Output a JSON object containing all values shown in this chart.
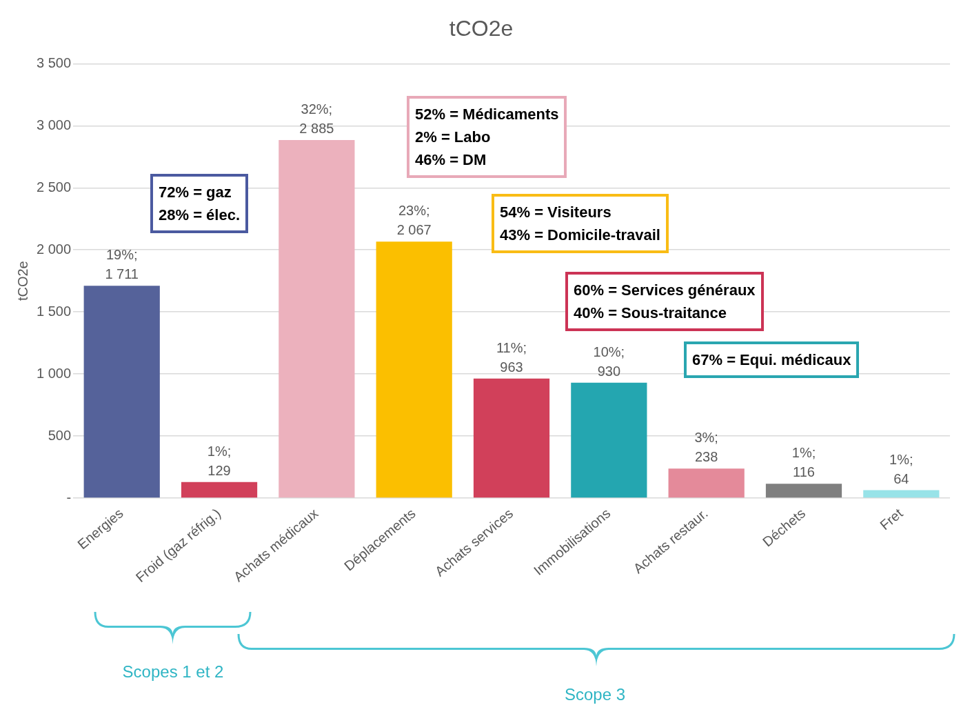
{
  "chart_data": {
    "type": "bar",
    "title": "tCO2e",
    "ylabel": "tCO2e",
    "categories": [
      "Energies",
      "Froid (gaz réfrig.)",
      "Achats médicaux",
      "Déplacements",
      "Achats services",
      "Immobilisations",
      "Achats restaur.",
      "Déchets",
      "Fret"
    ],
    "values": [
      1711,
      129,
      2885,
      2067,
      963,
      930,
      238,
      116,
      64
    ],
    "colors": [
      "#55629a",
      "#d1405a",
      "#ecb1bd",
      "#fbbf00",
      "#d1405a",
      "#24a6b0",
      "#e48a9a",
      "#7f7f7f",
      "#98e3e8"
    ],
    "value_labels": [
      "19%;\n1 711",
      "1%;\n129",
      "32%;\n2 885",
      "23%;\n2 067",
      "11%;\n963",
      "10%;\n930",
      "3%;\n238",
      "1%;\n116",
      "1%;\n64"
    ],
    "ylim": [
      0,
      3500
    ],
    "yticks": [
      {
        "value": 0,
        "label": "-"
      },
      500,
      {
        "value": 1000,
        "label": "1 000"
      },
      {
        "value": 1500,
        "label": "1 500"
      },
      {
        "value": 2000,
        "label": "2 000"
      },
      {
        "value": 2500,
        "label": "2 500"
      },
      {
        "value": 3000,
        "label": "3 000"
      },
      {
        "value": 3500,
        "label": "3 500"
      }
    ],
    "grid": "y",
    "legend": false,
    "annotations": [
      "72% = gaz\n28% = élec.",
      "52% = Médicaments\n2% = Labo\n46% = DM",
      "54% = Visiteurs\n43% = Domicile-travail",
      "60% = Services généraux\n40% = Sous-traitance",
      "67% = Equi. médicaux",
      "Scopes 1 et 2",
      "Scope 3"
    ]
  }
}
